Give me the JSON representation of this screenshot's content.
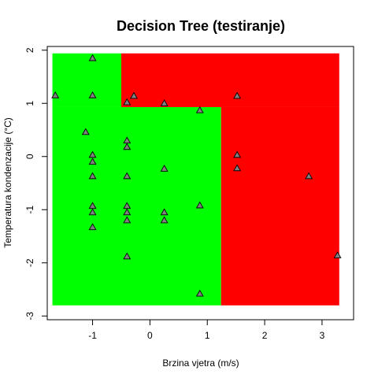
{
  "chart_data": {
    "type": "scatter",
    "title": "Decision Tree (testiranje)",
    "xlabel": "Brzina vjetra (m/s)",
    "ylabel": "Temperatura kondenzacije (°C)",
    "xlim": [
      -1.79,
      3.55
    ],
    "ylim": [
      -3.07,
      2.07
    ],
    "xticks": [
      -1,
      0,
      1,
      2,
      3
    ],
    "yticks": [
      -3,
      -2,
      -1,
      0,
      1,
      2
    ],
    "xtick_labels": [
      "-1",
      "0",
      "1",
      "2",
      "3"
    ],
    "ytick_labels": [
      "-3",
      "-2",
      "-1",
      "0",
      "1",
      "2"
    ],
    "colors": {
      "class_green": "#00ff00",
      "class_red": "#ff0000",
      "point_fill": "#808080"
    },
    "regions": [
      {
        "class": "green",
        "x": [
          -1.7,
          1.24
        ],
        "y": [
          -2.8,
          0.93
        ]
      },
      {
        "class": "green",
        "x": [
          -1.7,
          -0.5
        ],
        "y": [
          0.93,
          1.94
        ]
      },
      {
        "class": "red",
        "x": [
          -0.5,
          3.3
        ],
        "y": [
          0.93,
          1.94
        ]
      },
      {
        "class": "red",
        "x": [
          1.24,
          3.3
        ],
        "y": [
          -2.8,
          0.93
        ]
      }
    ],
    "points": [
      {
        "x": -1.0,
        "y": 1.85
      },
      {
        "x": -1.65,
        "y": 1.15
      },
      {
        "x": -1.0,
        "y": 1.15
      },
      {
        "x": -0.4,
        "y": 1.02
      },
      {
        "x": -0.28,
        "y": 1.14
      },
      {
        "x": 0.25,
        "y": 1.0
      },
      {
        "x": 0.87,
        "y": 0.87
      },
      {
        "x": 1.52,
        "y": 1.14
      },
      {
        "x": -1.12,
        "y": 0.46
      },
      {
        "x": -0.4,
        "y": 0.3
      },
      {
        "x": -0.4,
        "y": 0.18
      },
      {
        "x": -1.0,
        "y": 0.03
      },
      {
        "x": -1.0,
        "y": -0.1
      },
      {
        "x": 1.52,
        "y": 0.03
      },
      {
        "x": 1.52,
        "y": -0.22
      },
      {
        "x": 0.25,
        "y": -0.23
      },
      {
        "x": -1.0,
        "y": -0.37
      },
      {
        "x": -0.4,
        "y": -0.37
      },
      {
        "x": 2.77,
        "y": -0.37
      },
      {
        "x": -1.0,
        "y": -0.93
      },
      {
        "x": -0.4,
        "y": -0.93
      },
      {
        "x": 0.87,
        "y": -0.92
      },
      {
        "x": -1.0,
        "y": -1.05
      },
      {
        "x": -0.4,
        "y": -1.05
      },
      {
        "x": 0.25,
        "y": -1.05
      },
      {
        "x": -0.4,
        "y": -1.2
      },
      {
        "x": 0.25,
        "y": -1.2
      },
      {
        "x": -1.0,
        "y": -1.33
      },
      {
        "x": -0.4,
        "y": -1.88
      },
      {
        "x": 3.27,
        "y": -1.86
      },
      {
        "x": 0.87,
        "y": -2.58
      }
    ]
  }
}
